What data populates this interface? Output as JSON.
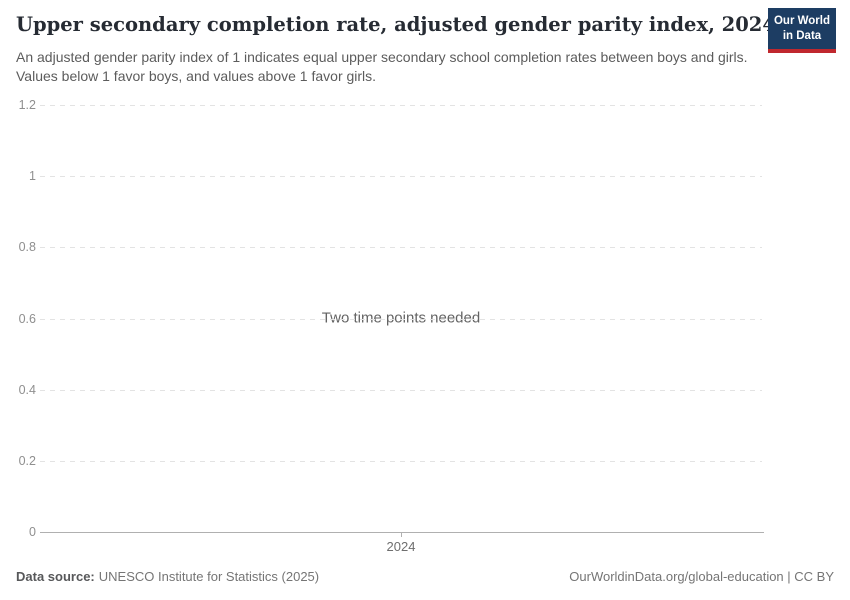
{
  "header": {
    "title": "Upper secondary completion rate, adjusted gender parity index, 2024",
    "subtitle": "An adjusted gender parity index of 1 indicates equal upper secondary school completion rates between boys and girls. Values below 1 favor boys, and values above 1 favor girls.",
    "logo": {
      "line1": "Our World",
      "line2": "in Data"
    }
  },
  "chart_data": {
    "type": "line",
    "title": "Upper secondary completion rate, adjusted gender parity index, 2024",
    "series": [],
    "empty_message": "Two time points needed",
    "ylim": [
      0,
      1.2
    ],
    "yticks": [
      {
        "value": 0,
        "label": "0"
      },
      {
        "value": 0.2,
        "label": "0.2"
      },
      {
        "value": 0.4,
        "label": "0.4"
      },
      {
        "value": 0.6,
        "label": "0.6"
      },
      {
        "value": 0.8,
        "label": "0.8"
      },
      {
        "value": 1,
        "label": "1"
      },
      {
        "value": 1.2,
        "label": "1.2"
      }
    ],
    "xticks": [
      {
        "label": "2024",
        "position_frac": 0.5
      }
    ],
    "grid": true,
    "legend": "none"
  },
  "footer": {
    "datasource_label": "Data source:",
    "datasource_value": "UNESCO Institute for Statistics (2025)",
    "attribution": "OurWorldinData.org/global-education | CC BY"
  },
  "colors": {
    "grid": "#e3e3e3",
    "axis": "#b0b0b0",
    "tick_label": "#8f8f8f",
    "title": "#262b33",
    "subtitle": "#5c5c5c",
    "footer": "#757575",
    "logo_bg": "#1d3d63",
    "logo_accent": "#c0282e",
    "message": "#636363"
  }
}
